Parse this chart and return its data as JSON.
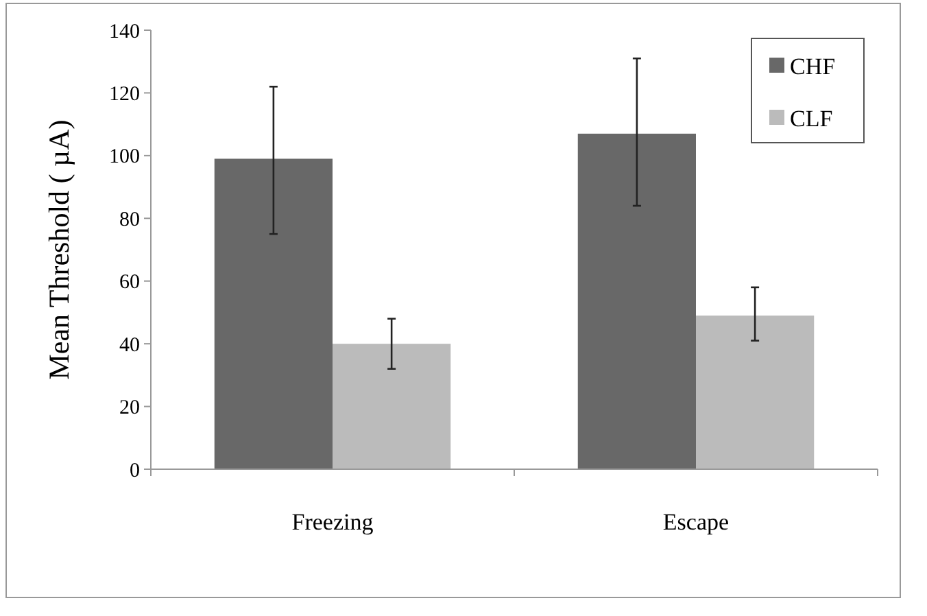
{
  "chart_data": {
    "type": "bar",
    "ylabel": "Mean Threshold ( µA)",
    "categories": [
      "Freezing",
      "Escape"
    ],
    "series": [
      {
        "name": "CHF",
        "color": "#686868",
        "values": [
          99,
          107
        ],
        "errors": [
          [
            75,
            122
          ],
          [
            84,
            131
          ]
        ]
      },
      {
        "name": "CLF",
        "color": "#bbbbbb",
        "values": [
          40,
          49
        ],
        "errors": [
          [
            32,
            48
          ],
          [
            41,
            58
          ]
        ]
      }
    ],
    "ylim": [
      0,
      140
    ],
    "yticks": [
      0,
      20,
      40,
      60,
      80,
      100,
      120,
      140
    ],
    "grid": false,
    "legend": "top right"
  }
}
